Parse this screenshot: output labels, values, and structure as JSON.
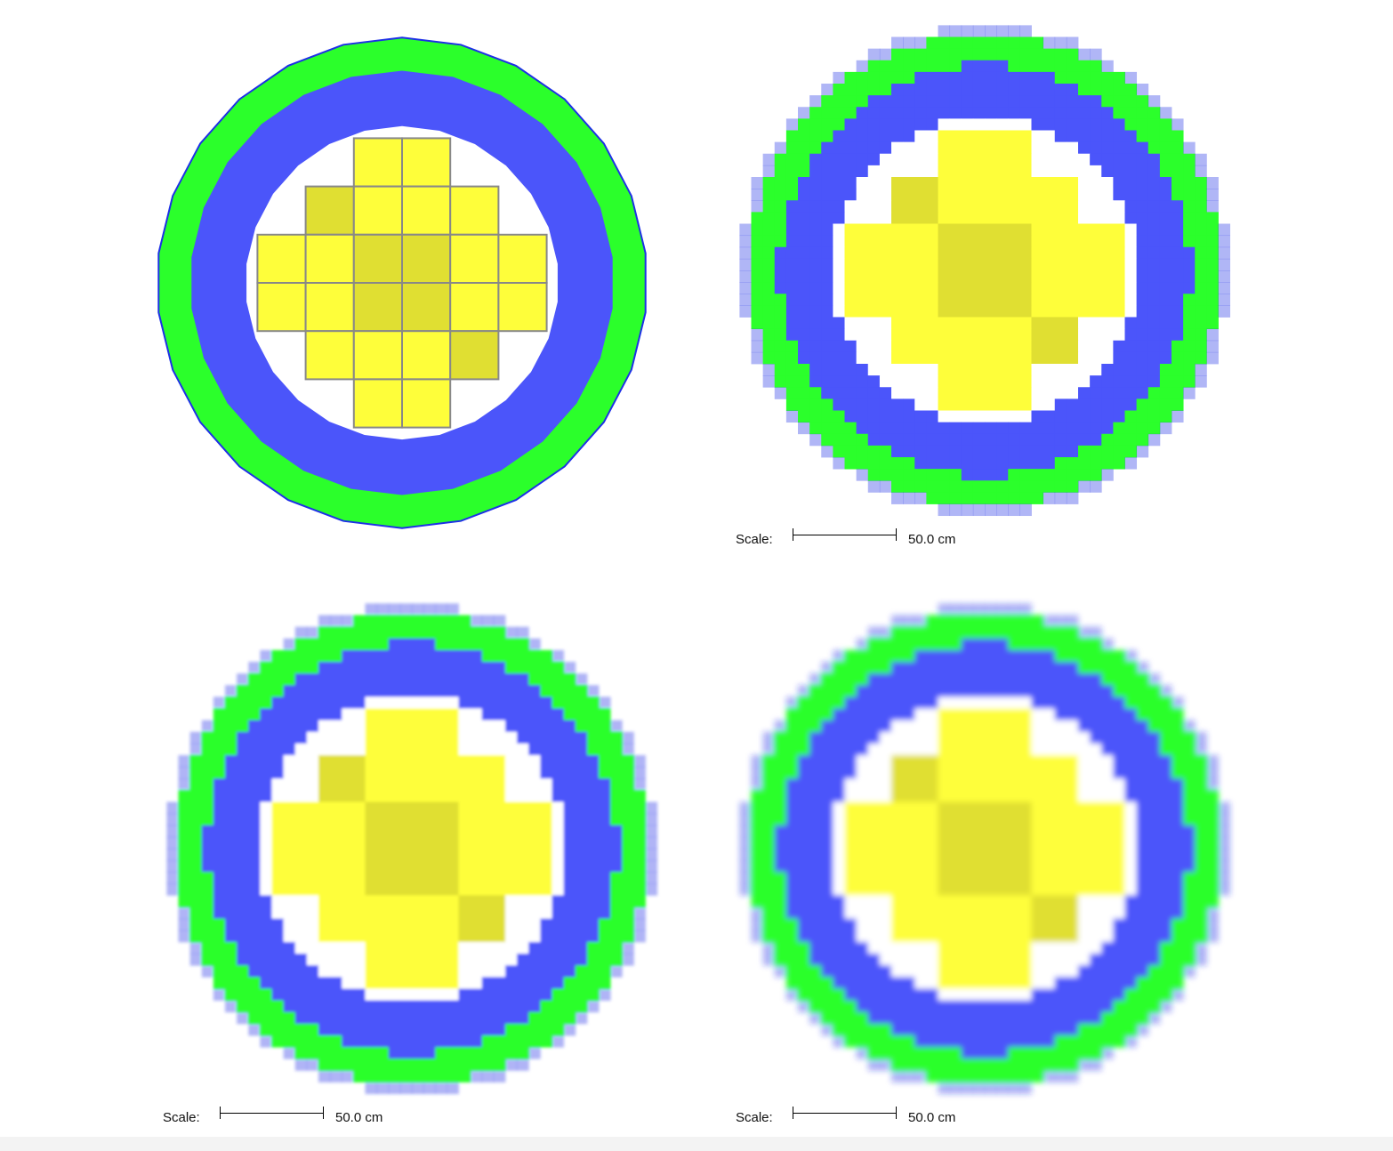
{
  "scale_bars": [
    {
      "label": "Scale:",
      "value": "50.0 cm"
    },
    {
      "label": "Scale:",
      "value": "50.0 cm"
    },
    {
      "label": "Scale:",
      "value": "50.0 cm"
    }
  ],
  "colors": {
    "reflector": "#2bff2b",
    "vessel_edge": "#1d2fe6",
    "vessel": "#4b55fa",
    "void": "#ffffff",
    "fuel": "#fefe3a",
    "fuel_dark": "#e0df32",
    "assembly_grid": "#888888"
  },
  "panels": [
    {
      "name": "vector-geometry",
      "render": "vector"
    },
    {
      "name": "pixel-geometry",
      "render": "pixel"
    },
    {
      "name": "pixel-geometry-antialiased",
      "render": "pixel-aa"
    },
    {
      "name": "pixel-geometry-smoothed",
      "render": "pixel-smooth"
    }
  ],
  "core_layout": {
    "rows": [
      [
        0,
        0,
        1,
        1,
        0,
        0
      ],
      [
        0,
        2,
        1,
        1,
        1,
        0
      ],
      [
        1,
        1,
        2,
        2,
        1,
        1
      ],
      [
        1,
        1,
        2,
        2,
        1,
        1
      ],
      [
        0,
        1,
        1,
        1,
        2,
        0
      ],
      [
        0,
        0,
        1,
        1,
        0,
        0
      ]
    ],
    "legend": "1 = fuel assembly, 2 = dark fuel assembly"
  }
}
